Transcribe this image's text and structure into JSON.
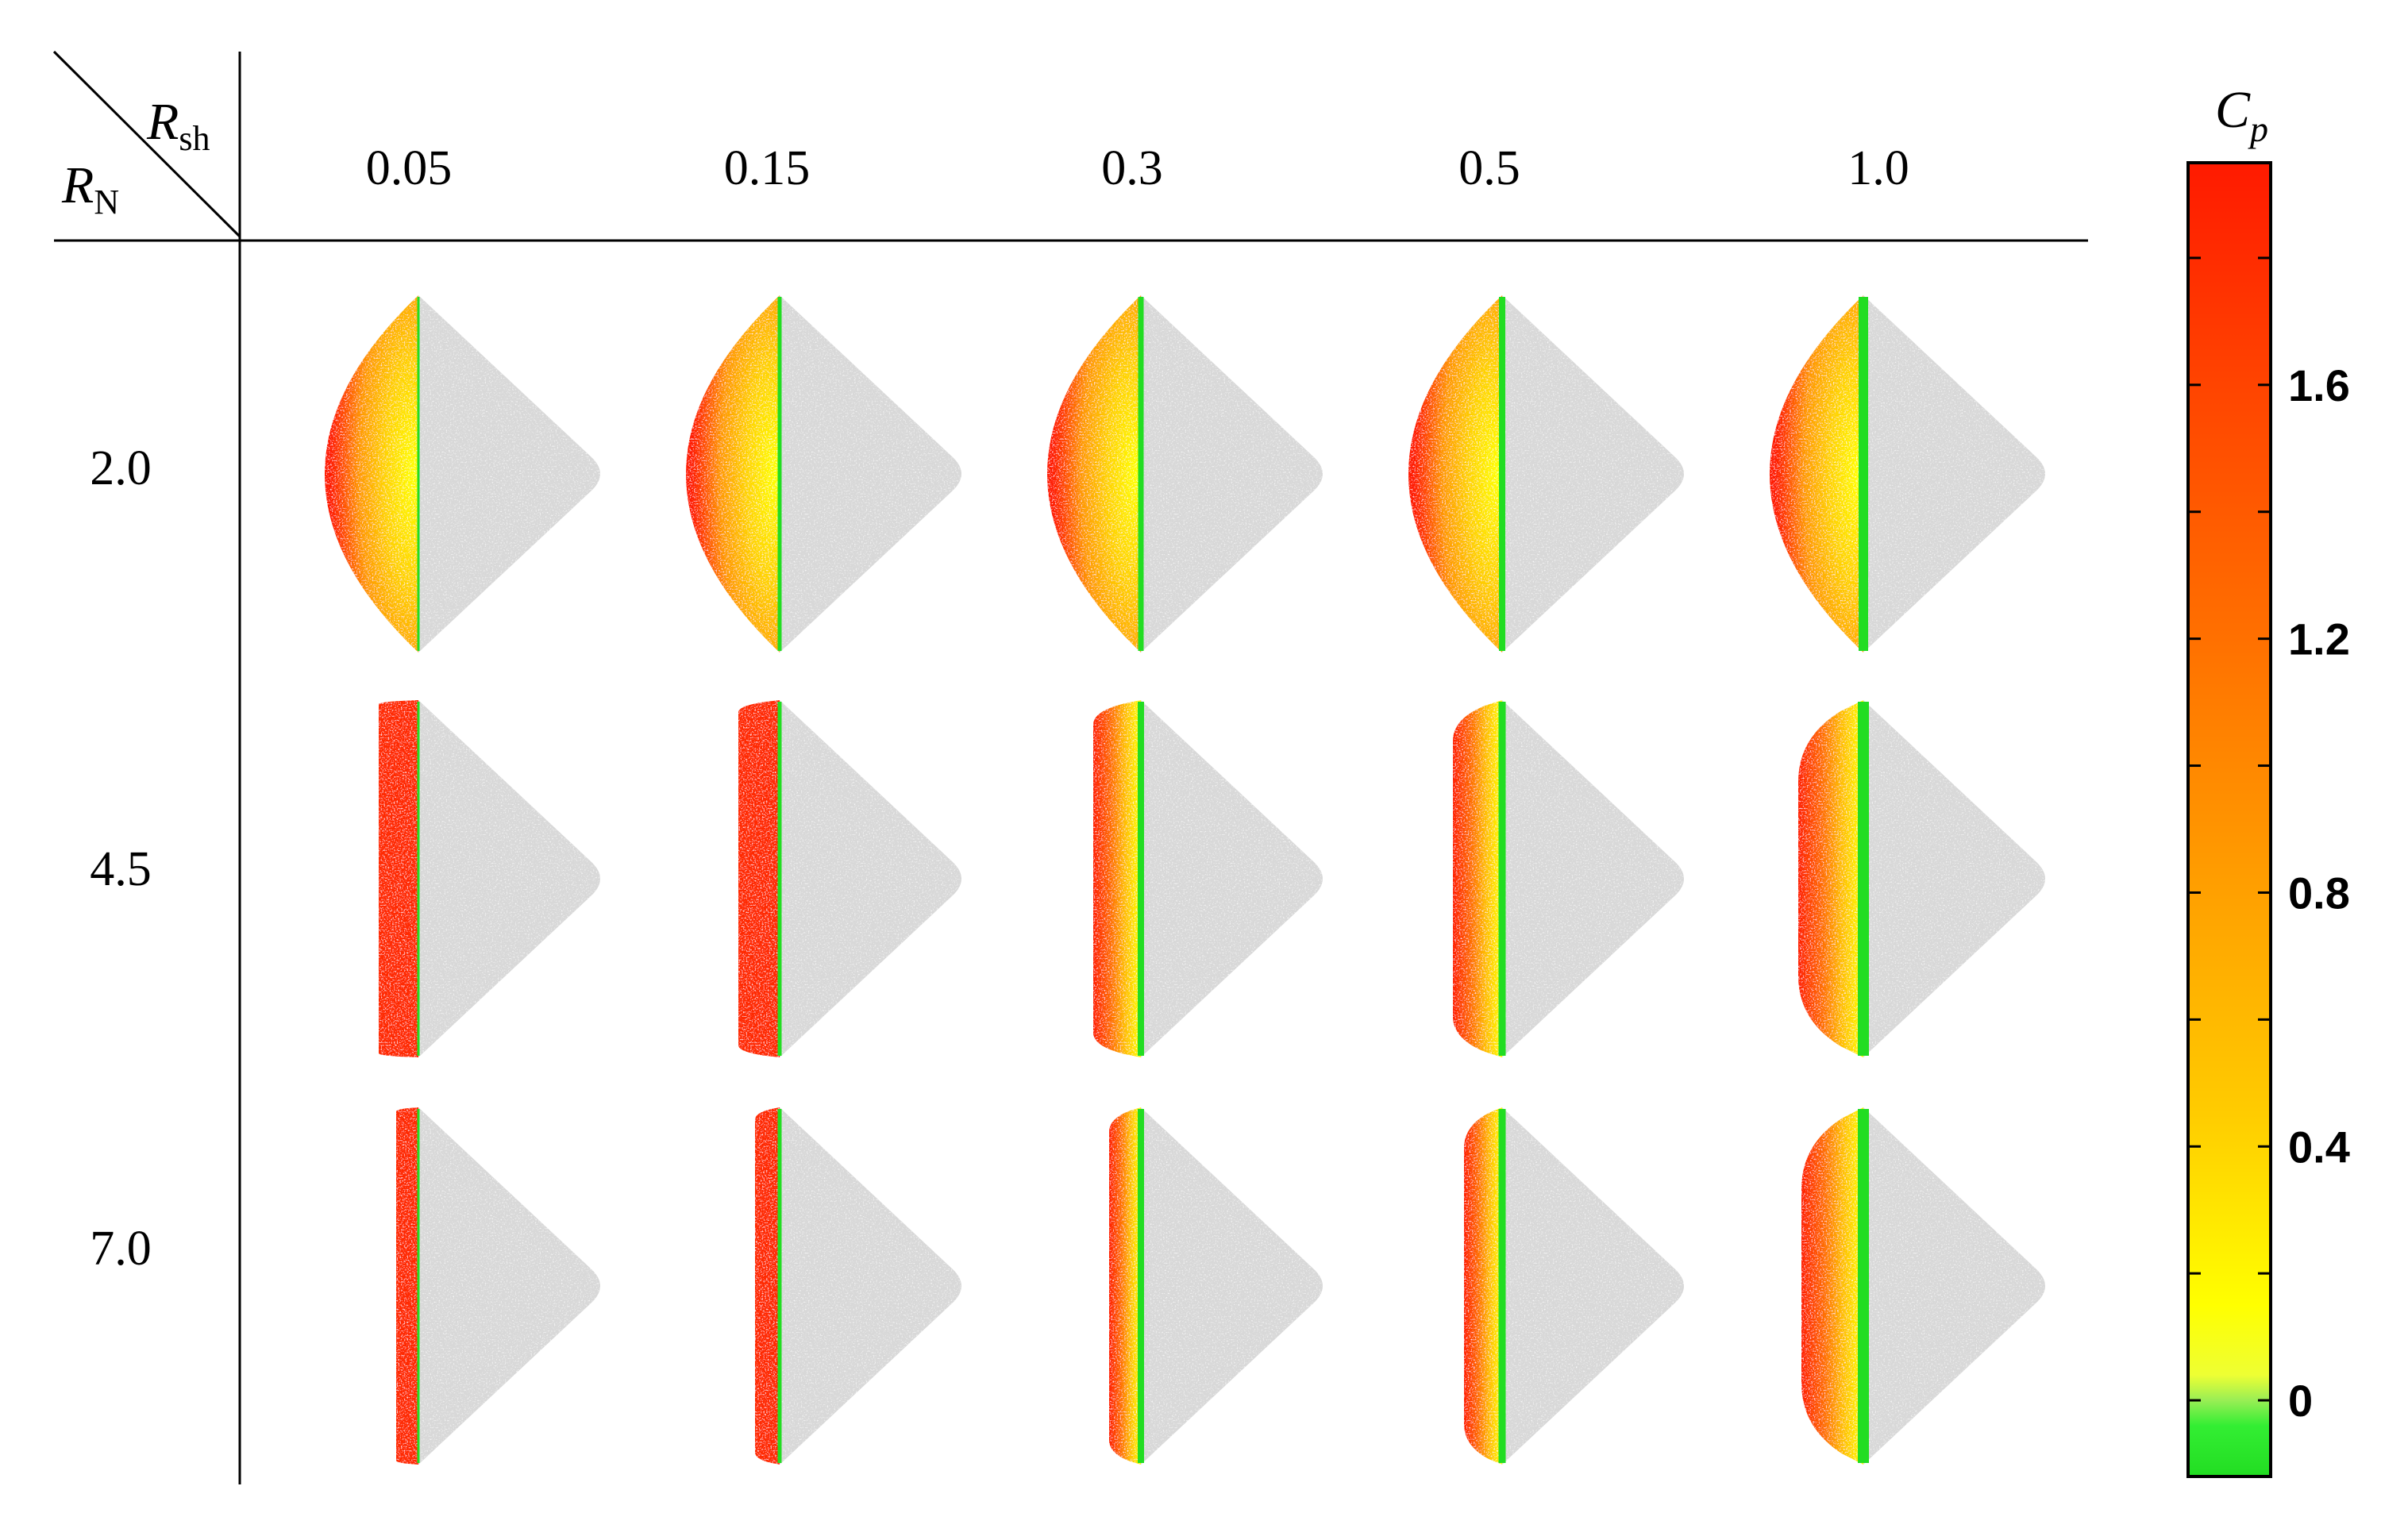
{
  "header": {
    "col_symbol": "R",
    "col_subscript": "sh",
    "row_symbol": "R",
    "row_subscript": "N"
  },
  "columns": [
    "0.05",
    "0.15",
    "0.3",
    "0.5",
    "1.0"
  ],
  "rows": [
    "2.0",
    "4.5",
    "7.0"
  ],
  "colorbar": {
    "title_symbol": "C",
    "title_subscript": "p",
    "ticks": [
      "1.6",
      "1.2",
      "0.8",
      "0.4",
      "0"
    ],
    "tick_values": [
      1.6,
      1.2,
      0.8,
      0.4,
      0.0
    ],
    "range": [
      -0.12,
      1.95
    ],
    "stops": [
      {
        "v": -0.12,
        "c": "#22dd22"
      },
      {
        "v": -0.04,
        "c": "#33ee33"
      },
      {
        "v": 0.0,
        "c": "#99ee55"
      },
      {
        "v": 0.04,
        "c": "#eeff33"
      },
      {
        "v": 0.15,
        "c": "#ffff00"
      },
      {
        "v": 0.45,
        "c": "#ffcc00"
      },
      {
        "v": 0.8,
        "c": "#ffa000"
      },
      {
        "v": 1.2,
        "c": "#ff7000"
      },
      {
        "v": 1.6,
        "c": "#ff4400"
      },
      {
        "v": 1.95,
        "c": "#ff1a00"
      }
    ]
  },
  "colors": {
    "body": "#d8d8d8",
    "stagnation": "#ff2a00",
    "sonic_line": "#22dd22",
    "axis": "#000000"
  }
}
